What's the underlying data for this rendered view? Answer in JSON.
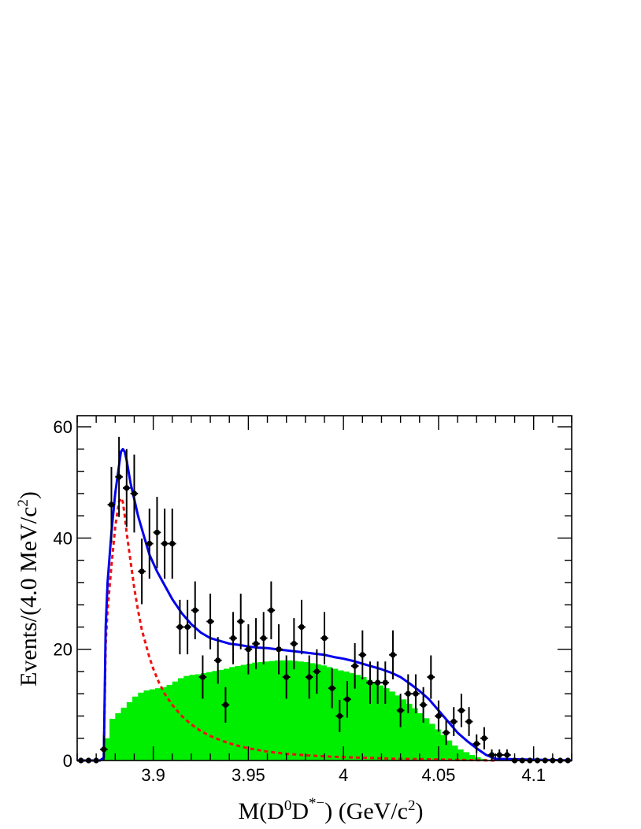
{
  "chart_data": {
    "type": "histogram",
    "title": "",
    "xlabel": {
      "pre": "M(D",
      "sup1": "0",
      "mid": "D",
      "sup2": "*−",
      "post": ") (GeV/c",
      "sup3": "2",
      "end": ")"
    },
    "ylabel": {
      "pre": "Events/(4.0 MeV/c",
      "sup": "2",
      "post": ")"
    },
    "xlim": [
      3.86,
      4.12
    ],
    "ylim": [
      0,
      62
    ],
    "xticks": [
      3.9,
      3.95,
      4.0,
      4.05,
      4.1
    ],
    "xtick_labels": [
      "3.9",
      "3.95",
      "4",
      "4.05",
      "4.1"
    ],
    "yticks": [
      0,
      20,
      40,
      60
    ],
    "ytick_labels": [
      "0",
      "20",
      "40",
      "60"
    ],
    "bin_width": 0.004,
    "colors": {
      "data": "#000000",
      "total_fit": "#0000ee",
      "signal": "#ee1111",
      "background": "#00ee00"
    },
    "series": [
      {
        "kind": "data_points",
        "x": [
          3.862,
          3.866,
          3.87,
          3.874,
          3.878,
          3.882,
          3.886,
          3.89,
          3.894,
          3.898,
          3.902,
          3.906,
          3.91,
          3.914,
          3.918,
          3.922,
          3.926,
          3.93,
          3.934,
          3.938,
          3.942,
          3.946,
          3.95,
          3.954,
          3.958,
          3.962,
          3.966,
          3.97,
          3.974,
          3.978,
          3.982,
          3.986,
          3.99,
          3.994,
          3.998,
          4.002,
          4.006,
          4.01,
          4.014,
          4.018,
          4.022,
          4.026,
          4.03,
          4.034,
          4.038,
          4.042,
          4.046,
          4.05,
          4.054,
          4.058,
          4.062,
          4.066,
          4.07,
          4.074,
          4.078,
          4.082,
          4.086,
          4.09,
          4.094,
          4.098,
          4.102,
          4.106,
          4.11,
          4.114,
          4.118
        ],
        "y": [
          0,
          0,
          0,
          2,
          46,
          51,
          49,
          48,
          34,
          39,
          41,
          39,
          39,
          24,
          24,
          27,
          15,
          25,
          18,
          10,
          22,
          25,
          20,
          21,
          22,
          27,
          20,
          15,
          21,
          24,
          15,
          16,
          22,
          13,
          8,
          11,
          17,
          19,
          14,
          14,
          14,
          19,
          9,
          12,
          12,
          10,
          15,
          8,
          5,
          7,
          9,
          7,
          3,
          4,
          1,
          1,
          1,
          0,
          0,
          0,
          0,
          0,
          0,
          0,
          0
        ]
      },
      {
        "kind": "background_histogram",
        "x": [
          3.874,
          3.877,
          3.88,
          3.883,
          3.886,
          3.889,
          3.892,
          3.895,
          3.898,
          3.901,
          3.904,
          3.907,
          3.91,
          3.913,
          3.916,
          3.919,
          3.922,
          3.925,
          3.928,
          3.931,
          3.934,
          3.937,
          3.94,
          3.943,
          3.946,
          3.949,
          3.952,
          3.955,
          3.958,
          3.961,
          3.964,
          3.967,
          3.97,
          3.973,
          3.976,
          3.979,
          3.982,
          3.985,
          3.988,
          3.991,
          3.994,
          3.997,
          4.0,
          4.003,
          4.006,
          4.009,
          4.012,
          4.015,
          4.018,
          4.021,
          4.024,
          4.027,
          4.03,
          4.033,
          4.036,
          4.039,
          4.042,
          4.045,
          4.048,
          4.051,
          4.054,
          4.057,
          4.06,
          4.063,
          4.066,
          4.069,
          4.072,
          4.075
        ],
        "y": [
          4,
          7.5,
          8.5,
          9.5,
          10.5,
          11.5,
          12.2,
          12.6,
          12.8,
          13.0,
          13.2,
          13.6,
          14.2,
          14.8,
          15.2,
          15.4,
          15.5,
          15.7,
          15.9,
          16.1,
          16.3,
          16.5,
          16.8,
          17.0,
          17.2,
          17.4,
          17.6,
          17.7,
          17.8,
          17.9,
          18.0,
          18.0,
          18.0,
          17.9,
          17.8,
          17.7,
          17.5,
          17.3,
          17.1,
          16.8,
          16.5,
          16.2,
          16.0,
          15.7,
          15.4,
          15.0,
          14.5,
          14.0,
          13.5,
          13.0,
          12.4,
          11.7,
          11.0,
          10.2,
          9.4,
          8.5,
          7.6,
          6.6,
          5.6,
          4.6,
          3.6,
          2.7,
          2.0,
          1.5,
          1.0,
          0.6,
          0.3,
          0.1
        ]
      },
      {
        "kind": "total_fit_curve",
        "x": [
          3.86,
          3.872,
          3.874,
          3.875,
          3.876,
          3.878,
          3.88,
          3.882,
          3.883,
          3.884,
          3.885,
          3.886,
          3.887,
          3.888,
          3.89,
          3.892,
          3.895,
          3.898,
          3.902,
          3.906,
          3.91,
          3.915,
          3.92,
          3.925,
          3.93,
          3.935,
          3.94,
          3.945,
          3.95,
          3.955,
          3.96,
          3.965,
          3.97,
          3.975,
          3.98,
          3.985,
          3.99,
          3.995,
          4.0,
          4.005,
          4.01,
          4.015,
          4.02,
          4.025,
          4.03,
          4.035,
          4.04,
          4.045,
          4.05,
          4.055,
          4.06,
          4.065,
          4.07,
          4.075,
          4.08,
          4.12
        ],
        "y": [
          0,
          0,
          0.5,
          24,
          32,
          41,
          48,
          53,
          55.5,
          56,
          55.5,
          54,
          52,
          50,
          47,
          44,
          40.5,
          37,
          34,
          31.5,
          29,
          26.5,
          24.5,
          23,
          22,
          21.5,
          21,
          20.8,
          20.5,
          20.3,
          20.2,
          20.0,
          19.8,
          19.6,
          19.4,
          19.2,
          19.0,
          18.6,
          18.3,
          17.9,
          17.4,
          16.9,
          16.4,
          15.8,
          15.0,
          13.8,
          12.5,
          11.0,
          9.0,
          7.0,
          5.0,
          3.5,
          2.2,
          1.0,
          0.3,
          0
        ]
      },
      {
        "kind": "signal_curve",
        "x": [
          3.86,
          3.872,
          3.874,
          3.875,
          3.876,
          3.878,
          3.88,
          3.882,
          3.883,
          3.884,
          3.885,
          3.886,
          3.888,
          3.89,
          3.892,
          3.894,
          3.896,
          3.898,
          3.9,
          3.903,
          3.906,
          3.91,
          3.915,
          3.92,
          3.925,
          3.93,
          3.935,
          3.94,
          3.945,
          3.95,
          3.96,
          3.97,
          3.98,
          3.99,
          4.0,
          4.01,
          4.02,
          4.03,
          4.04,
          4.05,
          4.06,
          4.07,
          4.08
        ],
        "y": [
          0,
          0,
          0.5,
          21,
          27,
          35,
          42,
          46.5,
          47.2,
          46.5,
          44,
          41,
          36,
          31,
          27,
          23.5,
          21,
          18.5,
          16.5,
          14,
          12,
          10,
          8,
          6.5,
          5.3,
          4.4,
          3.7,
          3.1,
          2.6,
          2.2,
          1.6,
          1.2,
          0.95,
          0.75,
          0.6,
          0.5,
          0.4,
          0.3,
          0.25,
          0.18,
          0.12,
          0.06,
          0
        ]
      }
    ],
    "errors_y": [
      0,
      0,
      0,
      2.5,
      6.8,
      7.2,
      7.0,
      7.0,
      5.9,
      6.3,
      6.4,
      6.3,
      6.3,
      4.9,
      4.9,
      5.2,
      3.9,
      5.0,
      4.2,
      3.2,
      4.7,
      5.0,
      4.5,
      4.6,
      4.7,
      5.2,
      4.5,
      3.9,
      4.6,
      4.9,
      3.9,
      4.0,
      4.7,
      3.6,
      2.9,
      3.3,
      4.1,
      4.4,
      3.8,
      3.8,
      3.8,
      4.4,
      3.0,
      3.5,
      3.5,
      3.2,
      3.9,
      2.8,
      2.2,
      2.6,
      3.0,
      2.6,
      1.7,
      2.0,
      1.0,
      1.0,
      1.0,
      0,
      0,
      0,
      0,
      0,
      0,
      0,
      0
    ]
  }
}
